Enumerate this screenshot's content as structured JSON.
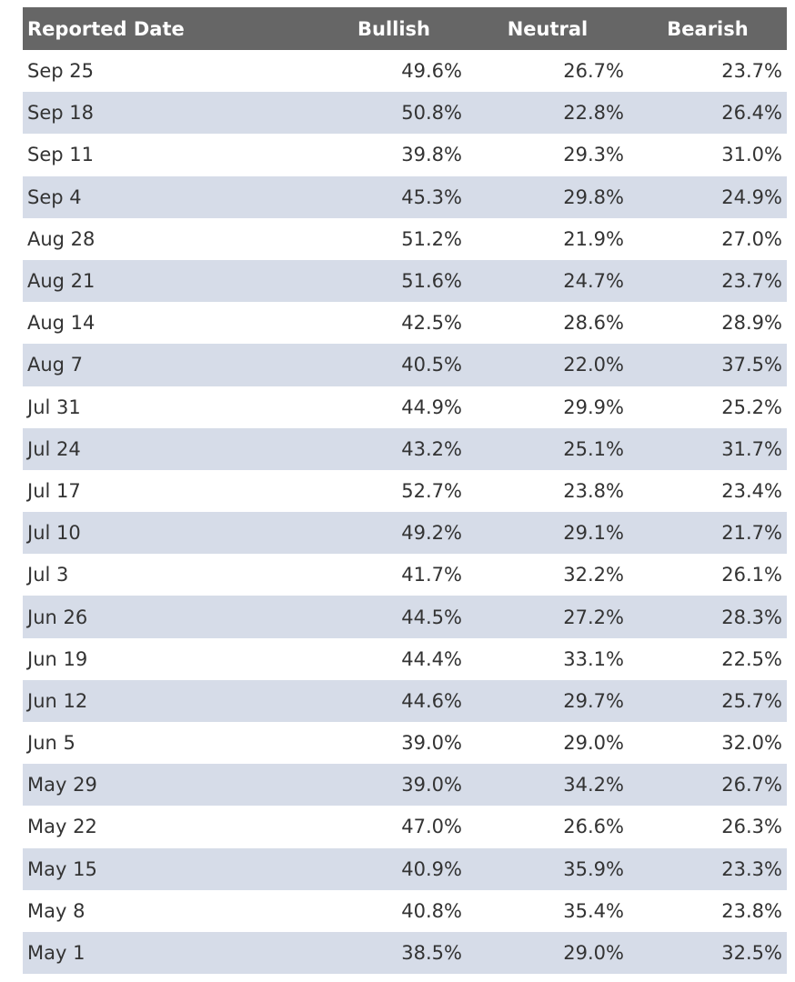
{
  "table": {
    "headers": [
      "Reported Date",
      "Bullish",
      "Neutral",
      "Bearish"
    ],
    "rows": [
      [
        "Sep 25",
        "49.6%",
        "26.7%",
        "23.7%"
      ],
      [
        "Sep 18",
        "50.8%",
        "22.8%",
        "26.4%"
      ],
      [
        "Sep 11",
        "39.8%",
        "29.3%",
        "31.0%"
      ],
      [
        "Sep 4",
        "45.3%",
        "29.8%",
        "24.9%"
      ],
      [
        "Aug 28",
        "51.2%",
        "21.9%",
        "27.0%"
      ],
      [
        "Aug 21",
        "51.6%",
        "24.7%",
        "23.7%"
      ],
      [
        "Aug 14",
        "42.5%",
        "28.6%",
        "28.9%"
      ],
      [
        "Aug 7",
        "40.5%",
        "22.0%",
        "37.5%"
      ],
      [
        "Jul 31",
        "44.9%",
        "29.9%",
        "25.2%"
      ],
      [
        "Jul 24",
        "43.2%",
        "25.1%",
        "31.7%"
      ],
      [
        "Jul 17",
        "52.7%",
        "23.8%",
        "23.4%"
      ],
      [
        "Jul 10",
        "49.2%",
        "29.1%",
        "21.7%"
      ],
      [
        "Jul 3",
        "41.7%",
        "32.2%",
        "26.1%"
      ],
      [
        "Jun 26",
        "44.5%",
        "27.2%",
        "28.3%"
      ],
      [
        "Jun 19",
        "44.4%",
        "33.1%",
        "22.5%"
      ],
      [
        "Jun 12",
        "44.6%",
        "29.7%",
        "25.7%"
      ],
      [
        "Jun 5",
        "39.0%",
        "29.0%",
        "32.0%"
      ],
      [
        "May 29",
        "39.0%",
        "34.2%",
        "26.7%"
      ],
      [
        "May 22",
        "47.0%",
        "26.6%",
        "26.3%"
      ],
      [
        "May 15",
        "40.9%",
        "35.9%",
        "23.3%"
      ],
      [
        "May 8",
        "40.8%",
        "35.4%",
        "23.8%"
      ],
      [
        "May 1",
        "38.5%",
        "29.0%",
        "32.5%"
      ]
    ]
  }
}
